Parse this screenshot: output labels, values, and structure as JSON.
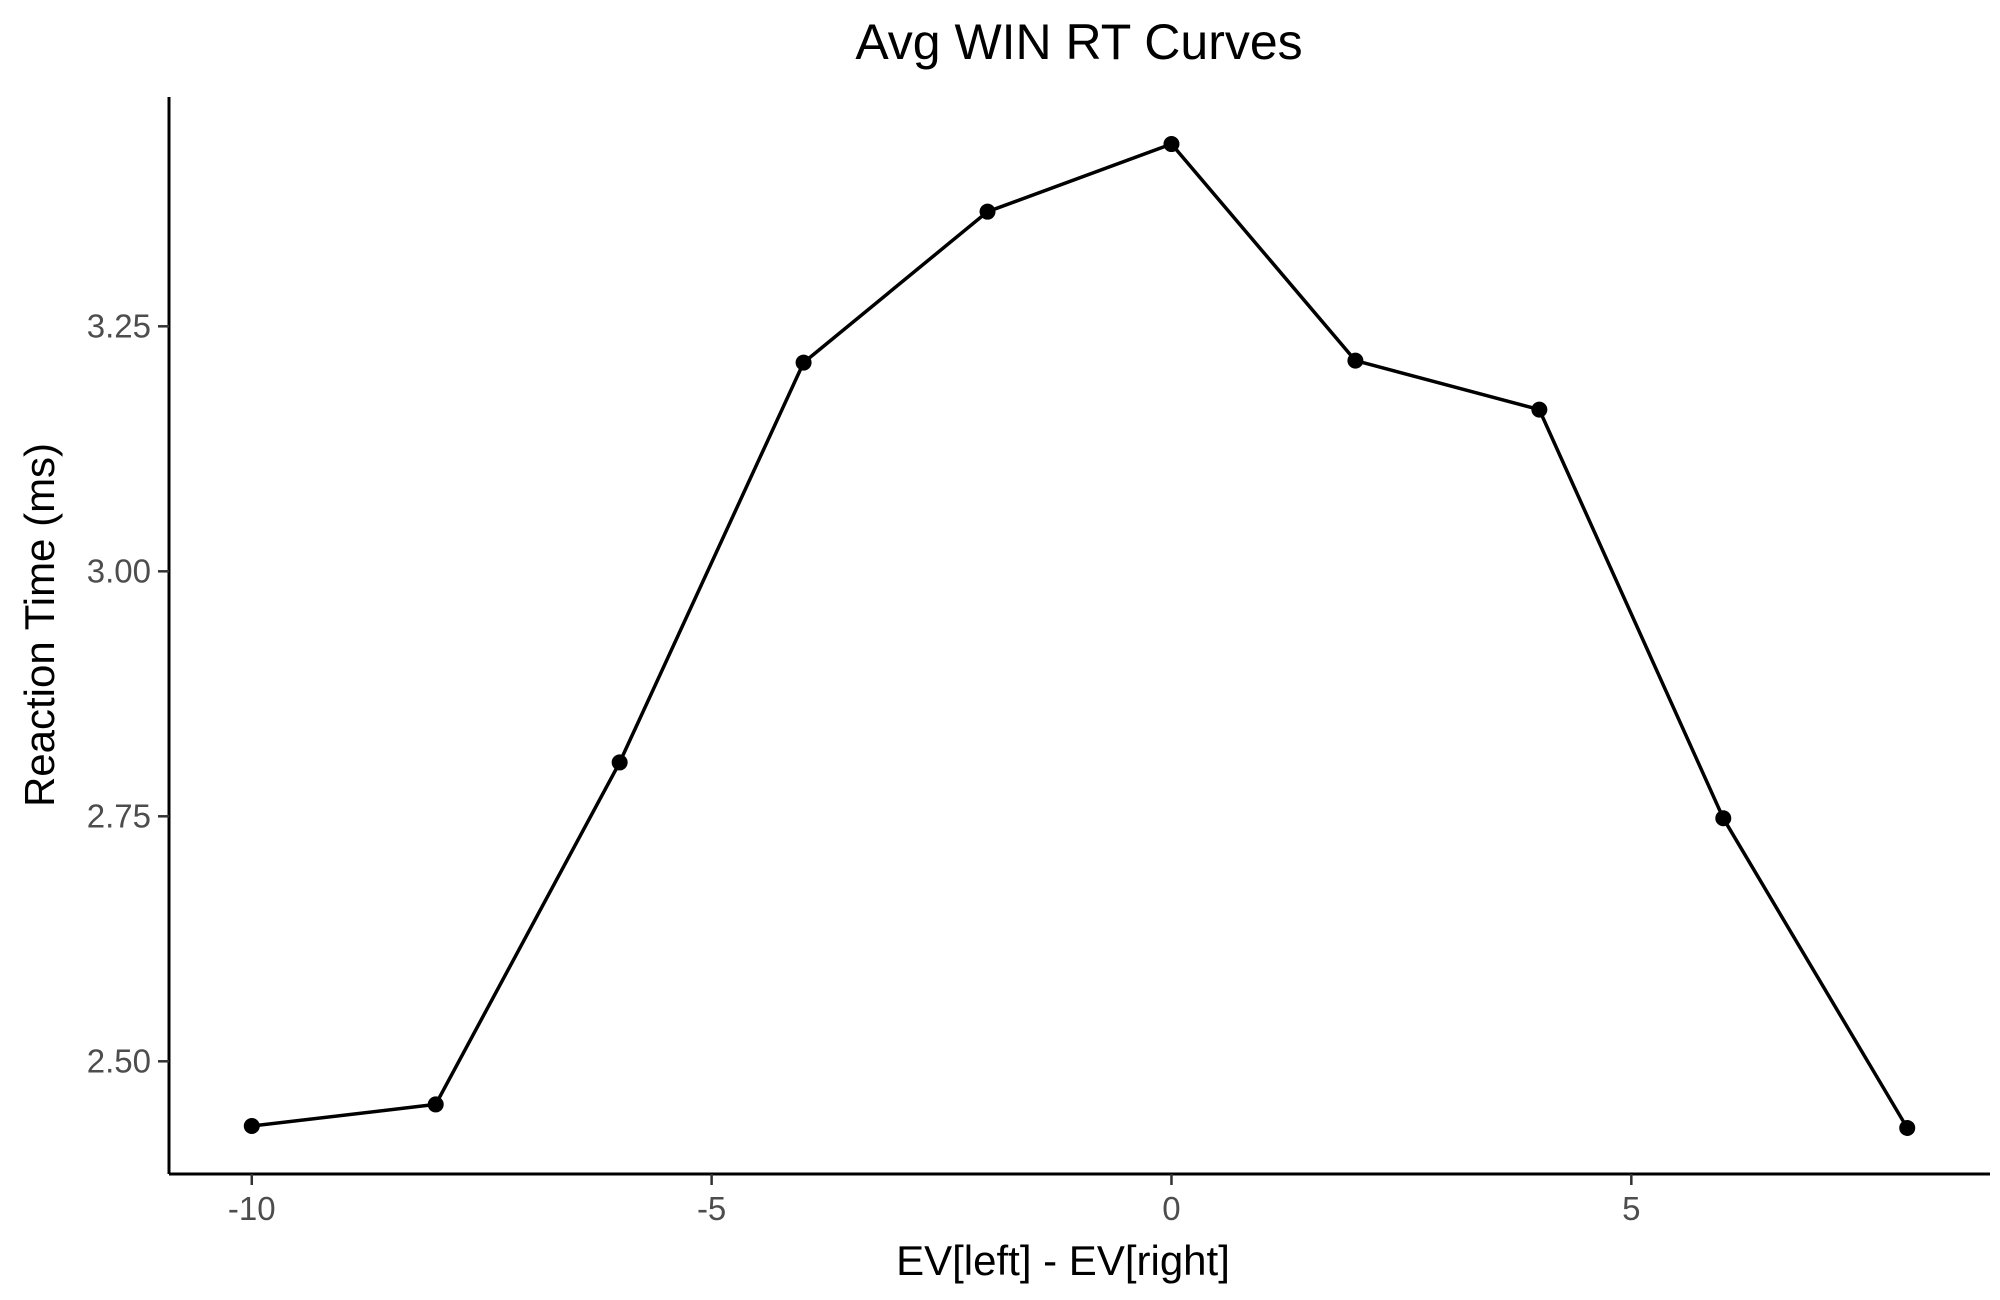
{
  "chart_data": {
    "type": "line",
    "title": "Avg WIN RT Curves",
    "xlabel": "EV[left] - EV[right]",
    "ylabel": "Reaction Time (ms)",
    "x": [
      -10,
      -8,
      -6,
      -4,
      -2,
      0,
      2,
      4,
      6,
      8
    ],
    "series": [
      {
        "values": [
          2.434,
          2.456,
          2.805,
          3.213,
          3.367,
          3.436,
          3.215,
          3.165,
          2.748,
          2.432
        ]
      }
    ],
    "xlim": [
      -10.9,
      8.9
    ],
    "ylim": [
      2.385,
      3.484
    ],
    "xticks": [
      -10,
      -5,
      0,
      5
    ],
    "xtick_labels": [
      "-10",
      "-5",
      "0",
      "5"
    ],
    "yticks": [
      2.5,
      2.75,
      3.0,
      3.25
    ],
    "ytick_labels": [
      "2.50",
      "2.75",
      "3.00",
      "3.25"
    ],
    "grid": false,
    "line_color": "#000000",
    "marker_color": "#000000"
  }
}
